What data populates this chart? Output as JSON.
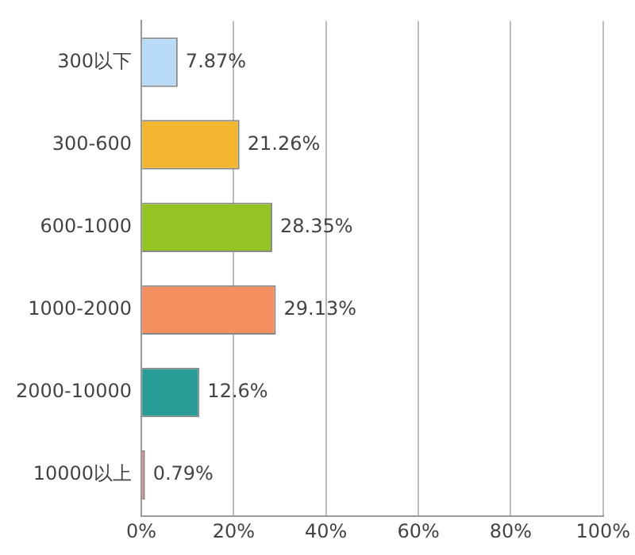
{
  "chart_data": {
    "type": "bar",
    "orientation": "horizontal",
    "categories": [
      "300以下",
      "300-600",
      "600-1000",
      "1000-2000",
      "2000-10000",
      "10000以上"
    ],
    "values": [
      7.87,
      21.26,
      28.35,
      29.13,
      12.6,
      0.79
    ],
    "colors": [
      "#b8dcf8",
      "#f2b630",
      "#94c424",
      "#f49060",
      "#2a9c98",
      "#d88888"
    ],
    "value_labels": [
      "7.87%",
      "21.26%",
      "28.35%",
      "29.13%",
      "12.6%",
      "0.79%"
    ],
    "xlim": [
      0,
      100
    ],
    "xticks": [
      {
        "value": 0,
        "label": "0%"
      },
      {
        "value": 20,
        "label": "20%"
      },
      {
        "value": 40,
        "label": "40%"
      },
      {
        "value": 60,
        "label": "60%"
      },
      {
        "value": 80,
        "label": "80%"
      },
      {
        "value": 100,
        "label": "100%"
      }
    ],
    "grid": "x",
    "legend": false
  }
}
